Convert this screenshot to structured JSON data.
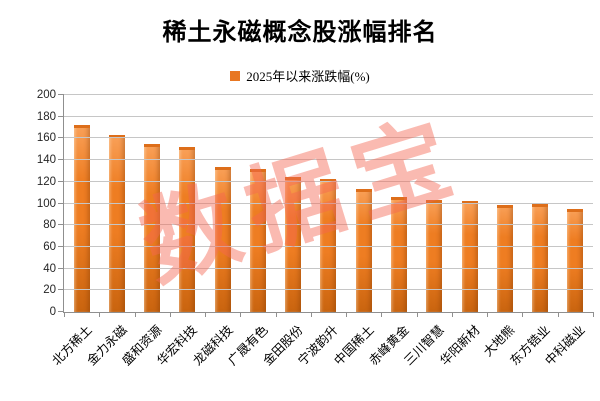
{
  "title": "稀土永磁概念股涨幅排名",
  "legend": {
    "label": "2025年以来涨跌幅(%)"
  },
  "watermark": "数据宝",
  "colors": {
    "bar_top": "#F9A159",
    "bar_mid": "#EE7D22",
    "bar_bottom": "#C9640F",
    "bar_cap": "#DD6E1A",
    "grid": "#C6C6C6",
    "axis": "#8F8F8F",
    "watermark": "rgba(243,101,82,0.45)",
    "legend_marker": "#E87722",
    "text": "#000000"
  },
  "chart_data": {
    "type": "bar",
    "title": "稀土永磁概念股涨幅排名",
    "series_name": "2025年以来涨跌幅(%)",
    "categories": [
      "北方稀土",
      "金力永磁",
      "盛和资源",
      "华宏科技",
      "龙磁科技",
      "广晟有色",
      "金田股份",
      "宁波韵升",
      "中国稀土",
      "赤峰黄金",
      "三川智慧",
      "华阳新材",
      "大地熊",
      "东方锆业",
      "中科磁业"
    ],
    "values": [
      172,
      163.5,
      154.5,
      152,
      133.5,
      132,
      124,
      122.5,
      113,
      106,
      103.5,
      102.5,
      99,
      99.5,
      95
    ],
    "xlabel": "",
    "ylabel": "",
    "ylim": [
      0,
      200
    ],
    "yticks": [
      0,
      20,
      40,
      60,
      80,
      100,
      120,
      140,
      160,
      180,
      200
    ],
    "grid": true,
    "legend_position": "top",
    "bar_color": "#EE7D22"
  }
}
